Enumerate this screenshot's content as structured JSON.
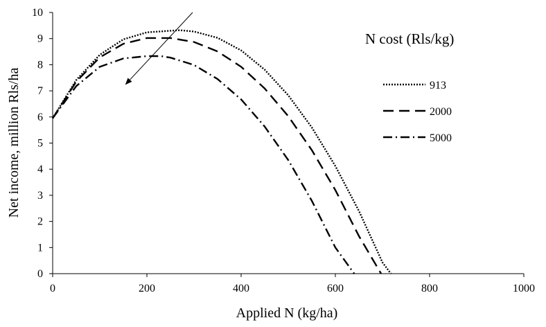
{
  "chart_data": {
    "type": "line",
    "title": "",
    "xlabel": "Applied N (kg/ha)",
    "ylabel": "Net income, million Rls/ha",
    "xlim": [
      0,
      1000
    ],
    "ylim": [
      0,
      10
    ],
    "xticks": [
      0,
      200,
      400,
      600,
      800,
      1000
    ],
    "yticks": [
      0,
      1,
      2,
      3,
      4,
      5,
      6,
      7,
      8,
      9,
      10
    ],
    "grid": false,
    "legend": {
      "title": "N cost (Rls/kg)",
      "placement": "right"
    },
    "series": [
      {
        "name": "913",
        "color": "#000000",
        "dash": "dotted",
        "x": [
          0,
          50,
          100,
          150,
          200,
          250,
          270,
          300,
          350,
          400,
          450,
          500,
          550,
          600,
          650,
          700,
          718
        ],
        "y": [
          5.95,
          7.41,
          8.38,
          8.97,
          9.24,
          9.3,
          9.32,
          9.27,
          9.03,
          8.55,
          7.81,
          6.83,
          5.6,
          4.12,
          2.4,
          0.43,
          0
        ]
      },
      {
        "name": "2000",
        "color": "#000000",
        "dash": "long-dash",
        "x": [
          0,
          50,
          100,
          150,
          200,
          250,
          300,
          350,
          400,
          450,
          500,
          550,
          600,
          650,
          697
        ],
        "y": [
          5.95,
          7.35,
          8.28,
          8.8,
          9.02,
          9.02,
          8.87,
          8.51,
          7.92,
          7.09,
          6.03,
          4.73,
          3.2,
          1.44,
          0
        ]
      },
      {
        "name": "5000",
        "color": "#000000",
        "dash": "dash-dot",
        "x": [
          0,
          50,
          100,
          150,
          200,
          230,
          250,
          300,
          350,
          400,
          450,
          500,
          550,
          600,
          640
        ],
        "y": [
          5.95,
          7.18,
          7.92,
          8.24,
          8.33,
          8.33,
          8.27,
          7.99,
          7.45,
          6.67,
          5.63,
          4.35,
          2.79,
          1.0,
          0
        ]
      }
    ],
    "annotations": [
      {
        "type": "arrow",
        "from": [
          297,
          10.0
        ],
        "to": [
          155,
          7.25
        ]
      }
    ]
  }
}
